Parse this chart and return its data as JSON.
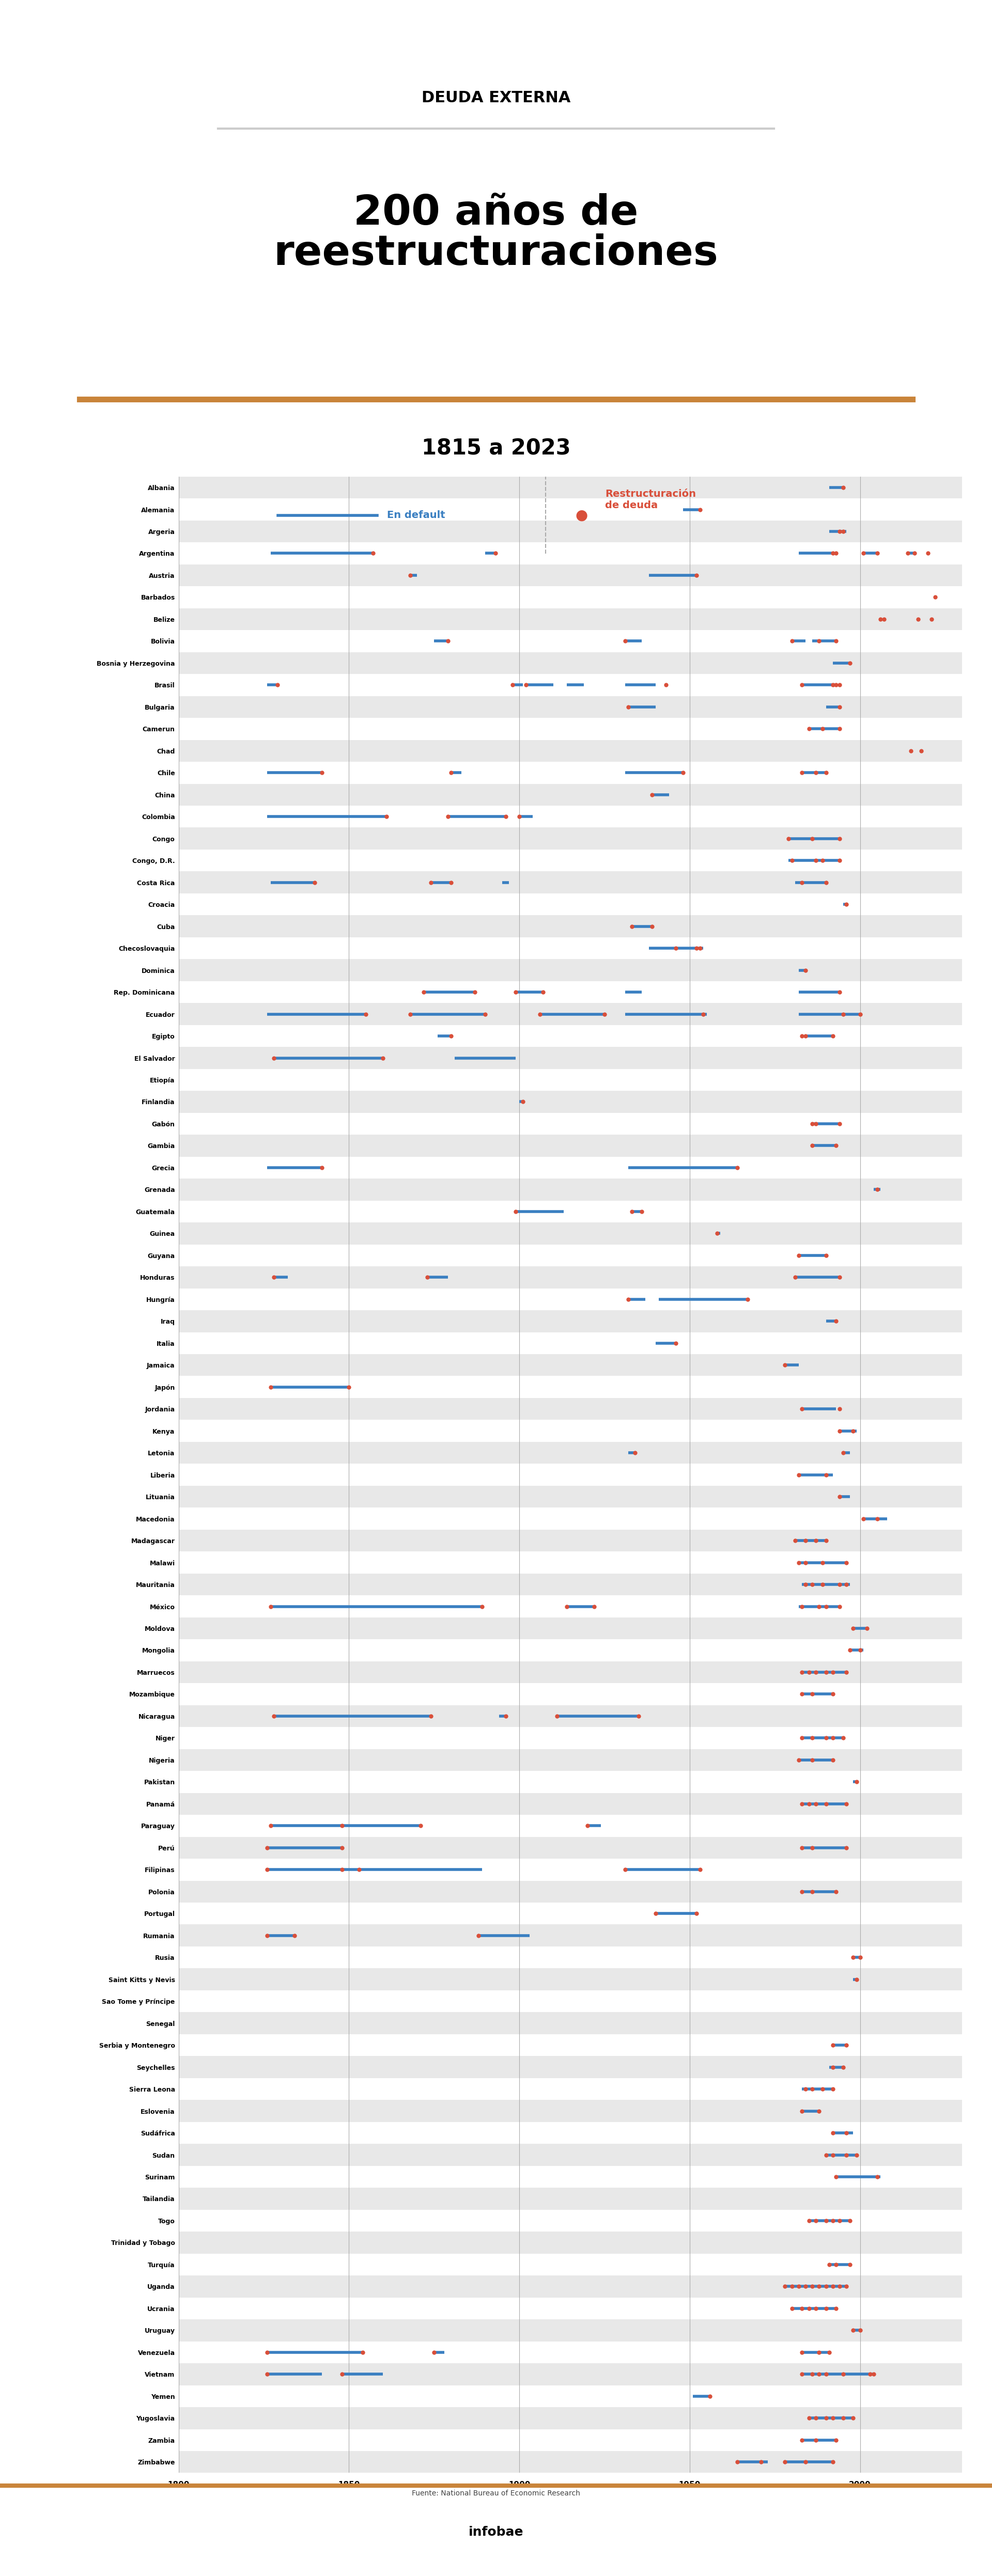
{
  "title_top": "DEUDA EXTERNA",
  "title_main": "200 años de\nreestructuraciones",
  "title_sub": "1815 a 2023",
  "legend_default_label": "En default",
  "legend_restr_label": "Restructuración\nde deuda",
  "source": "Fuente: National Bureau of Economic Research",
  "brand": "infobae",
  "default_color": "#3a7fc1",
  "restructuring_color": "#d94f3a",
  "orange_bar_color": "#c9843a",
  "background_color": "#ffffff",
  "row_alt_color": "#e8e8e8",
  "xmin": 1800,
  "xmax": 2030,
  "countries": [
    "Albania",
    "Alemania",
    "Argeria",
    "Argentina",
    "Austria",
    "Barbados",
    "Belize",
    "Bolivia",
    "Bosnia y Herzegovina",
    "Brasil",
    "Bulgaria",
    "Camerun",
    "Chad",
    "Chile",
    "China",
    "Colombia",
    "Congo",
    "Congo, D.R.",
    "Costa Rica",
    "Croacia",
    "Cuba",
    "Checoslovaquia",
    "Dominica",
    "Rep. Dominicana",
    "Ecuador",
    "Egipto",
    "El Salvador",
    "Etiopía",
    "Finlandia",
    "Gabón",
    "Gambia",
    "Grecia",
    "Grenada",
    "Guatemala",
    "Guinea",
    "Guyana",
    "Honduras",
    "Hungría",
    "Iraq",
    "Italia",
    "Jamaica",
    "Japón",
    "Jordania",
    "Kenya",
    "Letonia",
    "Liberia",
    "Lituania",
    "Macedonia",
    "Madagascar",
    "Malawi",
    "Mauritania",
    "México",
    "Moldova",
    "Mongolia",
    "Marruecos",
    "Mozambique",
    "Nicaragua",
    "Niger",
    "Nigeria",
    "Pakistan",
    "Panamá",
    "Paraguay",
    "Perú",
    "Filipinas",
    "Polonia",
    "Portugal",
    "Rumania",
    "Rusia",
    "Saint Kitts y Nevis",
    "Sao Tome y Príncipe",
    "Senegal",
    "Serbia y Montenegro",
    "Seychelles",
    "Sierra Leona",
    "Eslovenia",
    "Sudáfrica",
    "Sudan",
    "Surinam",
    "Tailandia",
    "Togo",
    "Trinidad y Tobago",
    "Turquía",
    "Uganda",
    "Ucrania",
    "Uruguay",
    "Venezuela",
    "Vietnam",
    "Yemen",
    "Yugoslavia",
    "Zambia",
    "Zimbabwe"
  ],
  "defaults": [
    [
      [
        "1991",
        "1995"
      ]
    ],
    [
      [
        "1948",
        "1953"
      ]
    ],
    [
      [
        "1991",
        "1996"
      ]
    ],
    [
      [
        "1827",
        "1857"
      ],
      [
        "1890",
        "1893"
      ],
      [
        "1982",
        "1992"
      ],
      [
        "2001",
        "2005"
      ],
      [
        "2014",
        "2016"
      ]
    ],
    [
      [
        "1868",
        "1870"
      ],
      [
        "1938",
        "1952"
      ]
    ],
    [],
    [],
    [
      [
        "1875",
        "1879"
      ],
      [
        "1931",
        "1936"
      ],
      [
        "1980",
        "1984"
      ],
      [
        "1986",
        "1993"
      ]
    ],
    [
      [
        "1992",
        "1997"
      ]
    ],
    [
      [
        "1826",
        "1829"
      ],
      [
        "1898",
        "1901"
      ],
      [
        "1902",
        "1910"
      ],
      [
        "1914",
        "1919"
      ],
      [
        "1931",
        "1940"
      ],
      [
        "1983",
        "1993"
      ]
    ],
    [
      [
        "1932",
        "1940"
      ],
      [
        "1990",
        "1994"
      ]
    ],
    [
      [
        "1985",
        "1994"
      ]
    ],
    [],
    [
      [
        "1826",
        "1842"
      ],
      [
        "1880",
        "1883"
      ],
      [
        "1931",
        "1948"
      ],
      [
        "1983",
        "1990"
      ]
    ],
    [
      [
        "1939",
        "1944"
      ]
    ],
    [
      [
        "1826",
        "1861"
      ],
      [
        "1879",
        "1896"
      ],
      [
        "1900",
        "1904"
      ]
    ],
    [
      [
        "1979",
        "1994"
      ]
    ],
    [
      [
        "1979",
        "1994"
      ]
    ],
    [
      [
        "1827",
        "1840"
      ],
      [
        "1874",
        "1880"
      ],
      [
        "1895",
        "1897"
      ],
      [
        "1981",
        "1990"
      ]
    ],
    [
      [
        "1995",
        "1996"
      ]
    ],
    [
      [
        "1933",
        "1939"
      ]
    ],
    [
      [
        "1938",
        "1954"
      ]
    ],
    [
      [
        "1982",
        "1984"
      ]
    ],
    [
      [
        "1872",
        "1887"
      ],
      [
        "1899",
        "1907"
      ],
      [
        "1931",
        "1936"
      ],
      [
        "1982",
        "1994"
      ]
    ],
    [
      [
        "1826",
        "1855"
      ],
      [
        "1868",
        "1890"
      ],
      [
        "1906",
        "1925"
      ],
      [
        "1931",
        "1955"
      ],
      [
        "1982",
        "2000"
      ]
    ],
    [
      [
        "1876",
        "1880"
      ],
      [
        "1984",
        "1992"
      ]
    ],
    [
      [
        "1828",
        "1860"
      ],
      [
        "1881",
        "1899"
      ]
    ],
    [],
    [
      [
        "1900",
        "1901"
      ]
    ],
    [
      [
        "1986",
        "1994"
      ]
    ],
    [
      [
        "1986",
        "1993"
      ]
    ],
    [
      [
        "1826",
        "1842"
      ],
      [
        "1932",
        "1964"
      ]
    ],
    [
      [
        "2004",
        "2006"
      ]
    ],
    [
      [
        "1899",
        "1913"
      ],
      [
        "1933",
        "1936"
      ]
    ],
    [
      [
        "1958",
        "1959"
      ]
    ],
    [
      [
        "1982",
        "1990"
      ]
    ],
    [
      [
        "1828",
        "1832"
      ],
      [
        "1873",
        "1879"
      ],
      [
        "1981",
        "1994"
      ]
    ],
    [
      [
        "1932",
        "1937"
      ],
      [
        "1941",
        "1967"
      ]
    ],
    [
      [
        "1990",
        "1993"
      ]
    ],
    [
      [
        "1940",
        "1946"
      ]
    ],
    [
      [
        "1978",
        "1982"
      ]
    ],
    [
      [
        "1827",
        "1850"
      ]
    ],
    [
      [
        "1983",
        "1993"
      ]
    ],
    [
      [
        "1994",
        "1999"
      ]
    ],
    [
      [
        "1932",
        "1934"
      ],
      [
        "1995",
        "1997"
      ]
    ],
    [
      [
        "1982",
        "1992"
      ]
    ],
    [
      [
        "1994",
        "1997"
      ]
    ],
    [
      [
        "2001",
        "2008"
      ]
    ],
    [
      [
        "1981",
        "1990"
      ]
    ],
    [
      [
        "1982",
        "1996"
      ]
    ],
    [
      [
        "1983",
        "1997"
      ]
    ],
    [
      [
        "1827",
        "1889"
      ],
      [
        "1914",
        "1922"
      ],
      [
        "1982",
        "1994"
      ]
    ],
    [
      [
        "1998",
        "2002"
      ]
    ],
    [
      [
        "1997",
        "2001"
      ]
    ],
    [
      [
        "1983",
        "1996"
      ]
    ],
    [
      [
        "1983",
        "1992"
      ]
    ],
    [
      [
        "1828",
        "1874"
      ],
      [
        "1894",
        "1896"
      ],
      [
        "1911",
        "1935"
      ]
    ],
    [
      [
        "1983",
        "1995"
      ]
    ],
    [
      [
        "1982",
        "1992"
      ]
    ],
    [
      [
        "1998",
        "1999"
      ]
    ],
    [
      [
        "1983",
        "1996"
      ]
    ],
    [
      [
        "1827",
        "1871"
      ],
      [
        "1920",
        "1924"
      ]
    ],
    [
      [
        "1826",
        "1848"
      ],
      [
        "1983",
        "1996"
      ]
    ],
    [
      [
        "1826",
        "1889"
      ],
      [
        "1931",
        "1953"
      ]
    ],
    [
      [
        "1983",
        "1993"
      ]
    ],
    [
      [
        "1940",
        "1952"
      ]
    ],
    [
      [
        "1826",
        "1834"
      ],
      [
        "1888",
        "1903"
      ]
    ],
    [
      [
        "1998",
        "2000"
      ]
    ],
    [
      [
        "1998",
        "1999"
      ]
    ],
    [],
    [],
    [
      [
        "1992",
        "1996"
      ]
    ],
    [
      [
        "1991",
        "1995"
      ]
    ],
    [
      [
        "1983",
        "1992"
      ]
    ],
    [
      [
        "1983",
        "1988"
      ]
    ],
    [
      [
        "1992",
        "1998"
      ]
    ],
    [
      [
        "1990",
        "1999"
      ]
    ],
    [
      [
        "1993",
        "2006"
      ]
    ],
    [],
    [
      [
        "1985",
        "1997"
      ]
    ],
    [],
    [
      [
        "1991",
        "1997"
      ]
    ],
    [
      [
        "1978",
        "1996"
      ]
    ],
    [
      [
        "1980",
        "1993"
      ]
    ],
    [
      [
        "1998",
        "2000"
      ]
    ],
    [
      [
        "1826",
        "1854"
      ],
      [
        "1875",
        "1878"
      ],
      [
        "1983",
        "1991"
      ]
    ],
    [
      [
        "1826",
        "1842"
      ],
      [
        "1848",
        "1860"
      ],
      [
        "1983",
        "2004"
      ]
    ],
    [
      [
        "1951",
        "1956"
      ]
    ],
    [
      [
        "1985",
        "1998"
      ]
    ],
    [
      [
        "1983",
        "1993"
      ]
    ],
    [
      [
        "1964",
        "1973"
      ],
      [
        "1978",
        "1992"
      ]
    ]
  ],
  "restructurings": [
    [
      [
        1995
      ]
    ],
    [
      [
        1953
      ]
    ],
    [
      [
        1994
      ],
      [
        1995
      ]
    ],
    [
      [
        1857
      ],
      [
        1893
      ],
      [
        1992
      ],
      [
        1993
      ],
      [
        2001
      ],
      [
        2005
      ],
      [
        2014
      ],
      [
        2016
      ],
      [
        2020
      ]
    ],
    [
      [
        1868
      ],
      [
        1952
      ]
    ],
    [
      [
        2022
      ]
    ],
    [
      [
        2006
      ],
      [
        2007
      ],
      [
        2017
      ],
      [
        2021
      ]
    ],
    [
      [
        1879
      ],
      [
        1931
      ],
      [
        1980
      ],
      [
        1988
      ],
      [
        1993
      ]
    ],
    [
      [
        1997
      ]
    ],
    [
      [
        1829
      ],
      [
        1898
      ],
      [
        1902
      ],
      [
        1943
      ],
      [
        1983
      ],
      [
        1992
      ],
      [
        1993
      ],
      [
        1994
      ]
    ],
    [
      [
        1932
      ],
      [
        1994
      ]
    ],
    [
      [
        1985
      ],
      [
        1989
      ],
      [
        1994
      ]
    ],
    [
      [
        2015
      ],
      [
        2018
      ]
    ],
    [
      [
        1842
      ],
      [
        1880
      ],
      [
        1948
      ],
      [
        1983
      ],
      [
        1987
      ],
      [
        1990
      ]
    ],
    [
      [
        1939
      ]
    ],
    [
      [
        1861
      ],
      [
        1879
      ],
      [
        1896
      ],
      [
        1900
      ]
    ],
    [
      [
        1979
      ],
      [
        1986
      ],
      [
        1994
      ]
    ],
    [
      [
        1980
      ],
      [
        1987
      ],
      [
        1989
      ],
      [
        1994
      ]
    ],
    [
      [
        1840
      ],
      [
        1874
      ],
      [
        1880
      ],
      [
        1983
      ],
      [
        1990
      ]
    ],
    [
      [
        1996
      ]
    ],
    [
      [
        1933
      ],
      [
        1939
      ]
    ],
    [
      [
        1946
      ],
      [
        1952
      ],
      [
        1953
      ]
    ],
    [
      [
        1984
      ]
    ],
    [
      [
        1872
      ],
      [
        1887
      ],
      [
        1899
      ],
      [
        1907
      ],
      [
        1994
      ]
    ],
    [
      [
        1855
      ],
      [
        1868
      ],
      [
        1890
      ],
      [
        1906
      ],
      [
        1925
      ],
      [
        1954
      ],
      [
        1995
      ],
      [
        2000
      ]
    ],
    [
      [
        1880
      ],
      [
        1983
      ],
      [
        1984
      ],
      [
        1992
      ]
    ],
    [
      [
        1828
      ],
      [
        1860
      ]
    ],
    [],
    [
      [
        1901
      ]
    ],
    [
      [
        1986
      ],
      [
        1987
      ],
      [
        1994
      ]
    ],
    [
      [
        1986
      ],
      [
        1993
      ]
    ],
    [
      [
        1842
      ],
      [
        1964
      ]
    ],
    [
      [
        2005
      ]
    ],
    [
      [
        1899
      ],
      [
        1933
      ],
      [
        1936
      ]
    ],
    [
      [
        1958
      ]
    ],
    [
      [
        1982
      ],
      [
        1990
      ]
    ],
    [
      [
        1828
      ],
      [
        1873
      ],
      [
        1981
      ],
      [
        1994
      ]
    ],
    [
      [
        1932
      ],
      [
        1967
      ]
    ],
    [
      [
        1993
      ]
    ],
    [
      [
        1946
      ]
    ],
    [
      [
        1978
      ]
    ],
    [
      [
        1827
      ],
      [
        1850
      ]
    ],
    [
      [
        1983
      ],
      [
        1994
      ]
    ],
    [
      [
        1994
      ],
      [
        1998
      ]
    ],
    [
      [
        1934
      ],
      [
        1995
      ]
    ],
    [
      [
        1982
      ],
      [
        1990
      ]
    ],
    [
      [
        1994
      ]
    ],
    [
      [
        2001
      ],
      [
        2005
      ]
    ],
    [
      [
        1981
      ],
      [
        1984
      ],
      [
        1987
      ],
      [
        1990
      ]
    ],
    [
      [
        1982
      ],
      [
        1984
      ],
      [
        1989
      ],
      [
        1996
      ]
    ],
    [
      [
        1984
      ],
      [
        1986
      ],
      [
        1989
      ],
      [
        1994
      ],
      [
        1996
      ]
    ],
    [
      [
        1827
      ],
      [
        1889
      ],
      [
        1914
      ],
      [
        1922
      ],
      [
        1983
      ],
      [
        1988
      ],
      [
        1990
      ],
      [
        1994
      ]
    ],
    [
      [
        1998
      ],
      [
        2002
      ]
    ],
    [
      [
        1997
      ],
      [
        2000
      ]
    ],
    [
      [
        1983
      ],
      [
        1985
      ],
      [
        1987
      ],
      [
        1990
      ],
      [
        1992
      ],
      [
        1996
      ]
    ],
    [
      [
        1983
      ],
      [
        1986
      ],
      [
        1992
      ]
    ],
    [
      [
        1828
      ],
      [
        1874
      ],
      [
        1896
      ],
      [
        1911
      ],
      [
        1935
      ]
    ],
    [
      [
        1983
      ],
      [
        1986
      ],
      [
        1990
      ],
      [
        1992
      ],
      [
        1995
      ]
    ],
    [
      [
        1982
      ],
      [
        1986
      ],
      [
        1992
      ]
    ],
    [
      [
        1999
      ]
    ],
    [
      [
        1983
      ],
      [
        1985
      ],
      [
        1987
      ],
      [
        1990
      ],
      [
        1996
      ]
    ],
    [
      [
        1827
      ],
      [
        1848
      ],
      [
        1871
      ],
      [
        1920
      ]
    ],
    [
      [
        1826
      ],
      [
        1848
      ],
      [
        1983
      ],
      [
        1986
      ],
      [
        1996
      ]
    ],
    [
      [
        1826
      ],
      [
        1848
      ],
      [
        1853
      ],
      [
        1931
      ],
      [
        1953
      ]
    ],
    [
      [
        1983
      ],
      [
        1986
      ],
      [
        1993
      ]
    ],
    [
      [
        1940
      ],
      [
        1952
      ]
    ],
    [
      [
        1826
      ],
      [
        1834
      ],
      [
        1888
      ]
    ],
    [
      [
        1998
      ],
      [
        2000
      ]
    ],
    [
      [
        1999
      ]
    ],
    [],
    [],
    [
      [
        1992
      ],
      [
        1996
      ]
    ],
    [
      [
        1992
      ],
      [
        1995
      ]
    ],
    [
      [
        1984
      ],
      [
        1986
      ],
      [
        1989
      ],
      [
        1992
      ]
    ],
    [
      [
        1983
      ],
      [
        1988
      ]
    ],
    [
      [
        1992
      ],
      [
        1996
      ]
    ],
    [
      [
        1990
      ],
      [
        1992
      ],
      [
        1996
      ],
      [
        1999
      ]
    ],
    [
      [
        1993
      ],
      [
        2005
      ]
    ],
    [],
    [
      [
        1985
      ],
      [
        1987
      ],
      [
        1990
      ],
      [
        1992
      ],
      [
        1994
      ],
      [
        1997
      ]
    ],
    [],
    [
      [
        1991
      ],
      [
        1993
      ],
      [
        1997
      ]
    ],
    [
      [
        1978
      ],
      [
        1980
      ],
      [
        1982
      ],
      [
        1984
      ],
      [
        1986
      ],
      [
        1988
      ],
      [
        1990
      ],
      [
        1992
      ],
      [
        1994
      ],
      [
        1996
      ]
    ],
    [
      [
        1980
      ],
      [
        1983
      ],
      [
        1985
      ],
      [
        1987
      ],
      [
        1990
      ],
      [
        1993
      ]
    ],
    [
      [
        1998
      ],
      [
        2000
      ]
    ],
    [
      [
        1826
      ],
      [
        1854
      ],
      [
        1875
      ],
      [
        1983
      ],
      [
        1988
      ],
      [
        1991
      ]
    ],
    [
      [
        1826
      ],
      [
        1848
      ],
      [
        1983
      ],
      [
        1986
      ],
      [
        1988
      ],
      [
        1990
      ],
      [
        1995
      ],
      [
        2003
      ],
      [
        2004
      ]
    ],
    [
      [
        1956
      ]
    ],
    [
      [
        1985
      ],
      [
        1987
      ],
      [
        1990
      ],
      [
        1992
      ],
      [
        1995
      ],
      [
        1998
      ]
    ],
    [
      [
        1983
      ],
      [
        1987
      ],
      [
        1993
      ]
    ],
    [
      [
        1964
      ],
      [
        1971
      ],
      [
        1978
      ],
      [
        1984
      ],
      [
        1992
      ]
    ]
  ]
}
